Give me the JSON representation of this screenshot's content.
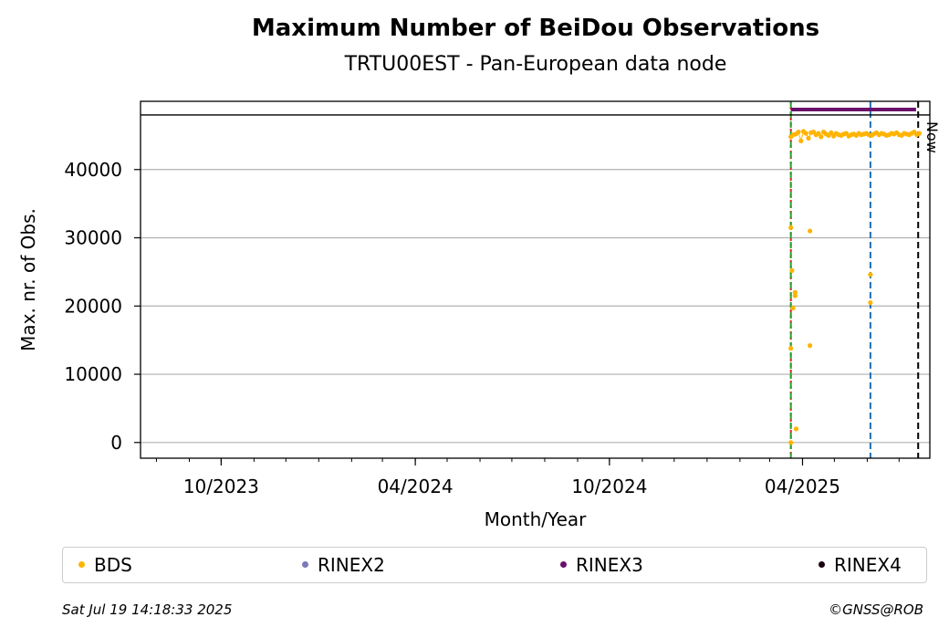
{
  "header": {
    "title": "Maximum Number of BeiDou Observations",
    "subtitle": "TRTU00EST - Pan-European data node"
  },
  "footer": {
    "timestamp": "Sat Jul 19 14:18:33 2025",
    "credit": "©GNSS@ROB"
  },
  "chart_data": {
    "type": "scatter",
    "title": "Maximum Number of BeiDou Observations",
    "subtitle": "TRTU00EST - Pan-European data node",
    "xlabel": "Month/Year",
    "ylabel": "Max. nr. of Obs.",
    "xlim": [
      "2023-07-17",
      "2025-07-30"
    ],
    "ylim": [
      -2300,
      50000
    ],
    "x_ticks": [
      "2023-10-01",
      "2024-04-01",
      "2024-10-01",
      "2025-04-01"
    ],
    "x_tick_labels": [
      "10/2023",
      "04/2024",
      "10/2024",
      "04/2025"
    ],
    "y_ticks": [
      0,
      10000,
      20000,
      30000,
      40000
    ],
    "y_tick_labels": [
      "0",
      "10000",
      "20000",
      "30000",
      "40000"
    ],
    "grid": "horizontal",
    "legend_placement": "bottom",
    "colors": {
      "bds": "#ffb400",
      "rinex2": "#7b78b8",
      "rinex3": "#6a0f6a",
      "rinex4": "#1a0010"
    },
    "reference_lines": [
      {
        "date": "2025-03-21",
        "color": "#d62728",
        "style": "dotted"
      },
      {
        "date": "2025-03-21",
        "color": "#2ca02c",
        "style": "dashed"
      },
      {
        "date": "2025-06-04",
        "color": "#1f6fb5",
        "style": "dashed"
      },
      {
        "date": "2025-07-19",
        "color": "#000000",
        "style": "dashed",
        "label": "Now"
      }
    ],
    "series": [
      {
        "name": "BDS",
        "color": "#ffb400",
        "points": [
          [
            "2025-03-21",
            0
          ],
          [
            "2025-03-21",
            13800
          ],
          [
            "2025-03-21",
            31500
          ],
          [
            "2025-03-22",
            25200
          ],
          [
            "2025-03-23",
            19700
          ],
          [
            "2025-03-25",
            22000
          ],
          [
            "2025-03-25",
            21500
          ],
          [
            "2025-03-26",
            2000
          ],
          [
            "2025-04-08",
            31000
          ],
          [
            "2025-04-08",
            14200
          ],
          [
            "2025-06-04",
            24600
          ],
          [
            "2025-06-04",
            20500
          ]
        ],
        "main_level": {
          "start": "2025-03-21",
          "end": "2025-07-20",
          "values": [
            44800,
            45100,
            45200,
            45500,
            44200,
            45600,
            45300,
            44600,
            45400,
            45500,
            45100,
            45300,
            44800,
            45500,
            45200,
            45000,
            45400,
            44900,
            45300,
            45100,
            45000,
            45200,
            45300,
            44900,
            45100,
            45200,
            45000,
            45300,
            45100,
            45200,
            45300,
            45100,
            45000,
            45200,
            45400,
            45100,
            45300,
            45200,
            45000,
            45100,
            45300,
            45200,
            45400,
            45100,
            45000,
            45300,
            45200,
            45100,
            45300,
            45500,
            45100,
            45300
          ]
        }
      },
      {
        "name": "RINEX2",
        "color": "#7b78b8",
        "points": []
      },
      {
        "name": "RINEX3",
        "color": "#6a0f6a",
        "segment": {
          "start": "2025-03-21",
          "end": "2025-07-17",
          "value": 48800
        }
      },
      {
        "name": "RINEX4",
        "color": "#1a0010",
        "points": []
      }
    ]
  }
}
